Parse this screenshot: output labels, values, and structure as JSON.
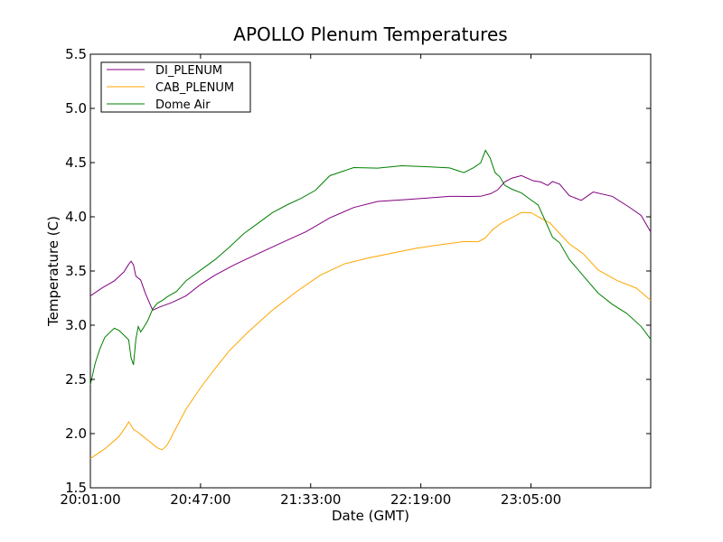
{
  "chart_data": {
    "type": "line",
    "title": "APOLLO Plenum Temperatures",
    "xlabel": "Date (GMT)",
    "ylabel": "Temperature (C)",
    "xlim_minutes": [
      0,
      234
    ],
    "ylim": [
      1.5,
      5.5
    ],
    "grid": false,
    "legend_position": "top-left",
    "x_ticks": [
      {
        "minutes": 0,
        "label": "20:01:00"
      },
      {
        "minutes": 46,
        "label": "20:47:00"
      },
      {
        "minutes": 92,
        "label": "21:33:00"
      },
      {
        "minutes": 138,
        "label": "22:19:00"
      },
      {
        "minutes": 184,
        "label": "23:05:00"
      }
    ],
    "y_ticks": [
      {
        "value": 1.5,
        "label": "1.5"
      },
      {
        "value": 2.0,
        "label": "2.0"
      },
      {
        "value": 2.5,
        "label": "2.5"
      },
      {
        "value": 3.0,
        "label": "3.0"
      },
      {
        "value": 3.5,
        "label": "3.5"
      },
      {
        "value": 4.0,
        "label": "4.0"
      },
      {
        "value": 4.5,
        "label": "4.5"
      },
      {
        "value": 5.0,
        "label": "5.0"
      },
      {
        "value": 5.5,
        "label": "5.5"
      }
    ],
    "series": [
      {
        "name": "DI_PLENUM",
        "color": "#800080",
        "x": [
          0,
          5,
          10,
          14,
          16,
          17,
          18,
          19,
          21,
          23,
          26,
          29,
          34,
          40,
          46,
          52,
          60,
          70,
          80,
          90,
          100,
          110,
          120,
          130,
          140,
          150,
          158,
          163,
          167,
          170,
          173,
          176,
          180,
          185,
          188,
          191,
          193,
          196,
          200,
          205,
          210,
          218,
          225,
          230,
          234
        ],
        "y": [
          3.27,
          3.34,
          3.4,
          3.48,
          3.55,
          3.58,
          3.55,
          3.45,
          3.42,
          3.3,
          3.15,
          3.18,
          3.22,
          3.28,
          3.38,
          3.46,
          3.55,
          3.65,
          3.75,
          3.85,
          3.98,
          4.08,
          4.14,
          4.16,
          4.18,
          4.2,
          4.2,
          4.2,
          4.22,
          4.25,
          4.32,
          4.35,
          4.37,
          4.32,
          4.31,
          4.28,
          4.32,
          4.3,
          4.2,
          4.16,
          4.24,
          4.2,
          4.1,
          4.02,
          3.86
        ]
      },
      {
        "name": "CAB_PLENUM",
        "color": "#FFA500",
        "x": [
          0,
          6,
          12,
          15,
          16,
          18,
          20,
          22,
          24,
          26,
          28,
          30,
          32,
          36,
          40,
          46,
          52,
          58,
          66,
          76,
          86,
          96,
          106,
          116,
          126,
          136,
          146,
          156,
          162,
          165,
          168,
          172,
          176,
          180,
          184,
          188,
          192,
          196,
          200,
          206,
          212,
          220,
          228,
          234
        ],
        "y": [
          1.77,
          1.86,
          1.98,
          2.08,
          2.12,
          2.05,
          2.02,
          1.98,
          1.94,
          1.9,
          1.86,
          1.84,
          1.88,
          2.05,
          2.22,
          2.42,
          2.6,
          2.77,
          2.95,
          3.15,
          3.32,
          3.47,
          3.57,
          3.62,
          3.66,
          3.7,
          3.73,
          3.76,
          3.76,
          3.8,
          3.88,
          3.95,
          4.0,
          4.05,
          4.05,
          4.0,
          3.95,
          3.85,
          3.75,
          3.65,
          3.5,
          3.4,
          3.33,
          3.23
        ]
      },
      {
        "name": "Dome Air",
        "color": "#008000",
        "x": [
          0,
          2,
          4,
          6,
          8,
          10,
          12,
          14,
          16,
          17,
          18,
          19,
          20,
          21,
          22,
          24,
          26,
          28,
          30,
          32,
          36,
          40,
          46,
          52,
          58,
          64,
          70,
          76,
          82,
          88,
          94,
          100,
          110,
          120,
          130,
          140,
          150,
          156,
          160,
          163,
          165,
          167,
          169,
          171,
          173,
          176,
          180,
          184,
          187,
          190,
          193,
          196,
          200,
          206,
          212,
          218,
          224,
          230,
          234
        ],
        "y": [
          2.45,
          2.65,
          2.78,
          2.88,
          2.92,
          2.96,
          2.94,
          2.9,
          2.86,
          2.7,
          2.64,
          2.88,
          3.0,
          2.95,
          2.98,
          3.05,
          3.15,
          3.2,
          3.22,
          3.25,
          3.3,
          3.4,
          3.5,
          3.6,
          3.72,
          3.85,
          3.95,
          4.05,
          4.12,
          4.18,
          4.25,
          4.38,
          4.45,
          4.44,
          4.46,
          4.45,
          4.44,
          4.4,
          4.45,
          4.5,
          4.62,
          4.55,
          4.42,
          4.38,
          4.3,
          4.26,
          4.22,
          4.15,
          4.1,
          3.95,
          3.8,
          3.75,
          3.6,
          3.45,
          3.3,
          3.2,
          3.12,
          3.0,
          2.87
        ]
      }
    ]
  }
}
